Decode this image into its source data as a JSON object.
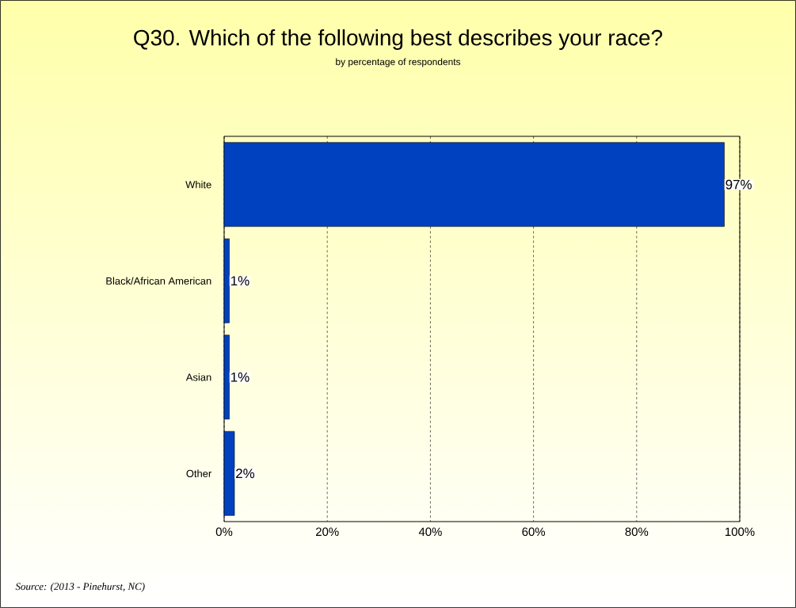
{
  "chart_data": {
    "type": "bar",
    "orientation": "horizontal",
    "title": "Q30. Which of the following best describes your race?",
    "subtitle": "by percentage of respondents",
    "categories": [
      "White",
      "Black/African American",
      "Asian",
      "Other"
    ],
    "values": [
      97,
      1,
      1,
      2
    ],
    "value_labels": [
      "97%",
      "1%",
      "1%",
      "2%"
    ],
    "color": "#0041c0",
    "xlim": [
      0,
      100
    ],
    "xticks": [
      {
        "value": 0,
        "label": "0%"
      },
      {
        "value": 20,
        "label": "20%"
      },
      {
        "value": 40,
        "label": "40%"
      },
      {
        "value": 60,
        "label": "60%"
      },
      {
        "value": 80,
        "label": "80%"
      },
      {
        "value": 100,
        "label": "100%"
      }
    ],
    "grid": "x",
    "annotations": [
      "*Source: (2013 - Pinehurst, NC)*"
    ]
  }
}
